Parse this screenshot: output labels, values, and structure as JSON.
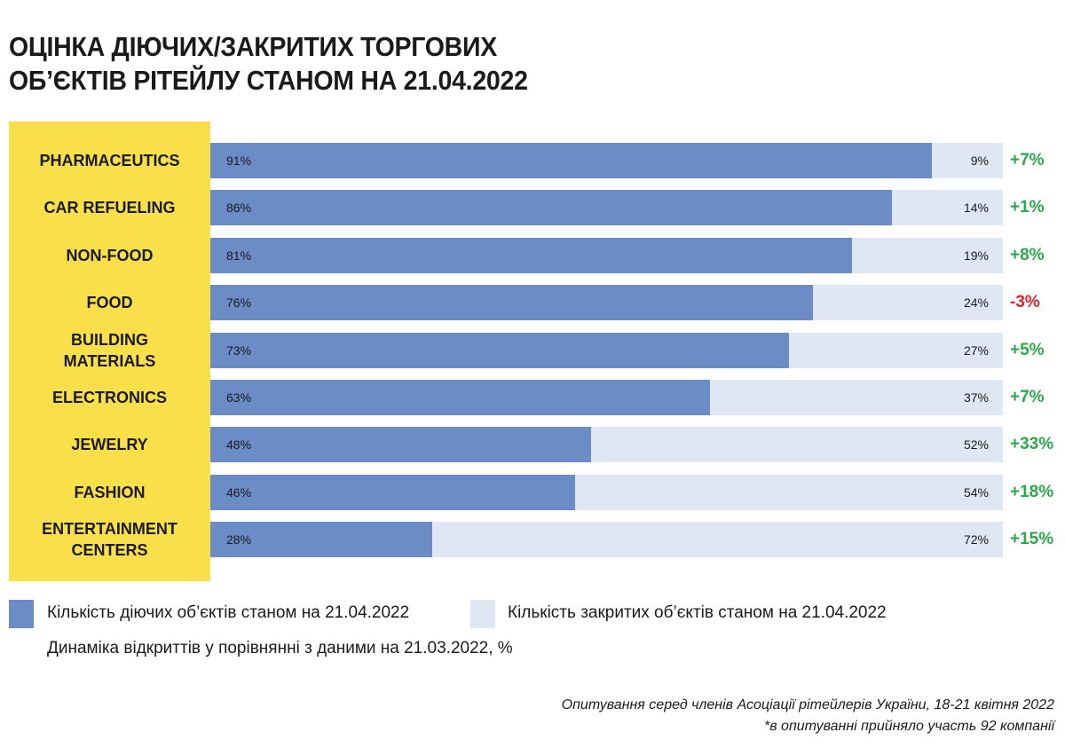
{
  "title_line1": "ОЦІНКА ДІЮЧИХ/ЗАКРИТИХ ТОРГОВИХ",
  "title_line2": "ОБ’ЄКТІВ РІТЕЙЛУ СТАНОМ НА 21.04.2022",
  "chart_data": {
    "type": "bar",
    "orientation": "horizontal",
    "stacked": true,
    "categories": [
      "PHARMACEUTICS",
      "CAR REFUELING",
      "NON-FOOD",
      "FOOD",
      "BUILDING MATERIALS",
      "ELECTRONICS",
      "JEWELRY",
      "FASHION",
      "ENTERTAINMENT CENTERS"
    ],
    "series": [
      {
        "name": "Кількість діючих об’єктів станом на 21.04.2022",
        "color": "#6B8CC7",
        "values": [
          91,
          86,
          81,
          76,
          73,
          63,
          48,
          46,
          28
        ],
        "labels": [
          "91%",
          "86%",
          "81%",
          "76%",
          "73%",
          "63%",
          "48%",
          "46%",
          "28%"
        ]
      },
      {
        "name": "Кількість закритих об’єктів станом на 21.04.2022",
        "color": "#DFE6F4",
        "values": [
          9,
          14,
          19,
          24,
          27,
          37,
          52,
          54,
          72
        ],
        "labels": [
          "9%",
          "14%",
          "19%",
          "24%",
          "27%",
          "37%",
          "52%",
          "54%",
          "72%"
        ]
      }
    ],
    "change_label": "Динаміка відкриттів у порівнянні з даними на 21.03.2022, %",
    "changes": [
      "+7%",
      "+1%",
      "+8%",
      "-3%",
      "+5%",
      "+7%",
      "+33%",
      "+18%",
      "+15%"
    ],
    "change_values": [
      7,
      1,
      8,
      -3,
      5,
      7,
      33,
      18,
      15
    ],
    "positive_color": "#2BA84A",
    "negative_color": "#E3202A",
    "xlim": [
      0,
      100
    ]
  },
  "footnote_line1": "Опитування серед членів Асоціації рітейлерів України, 18-21 квітня 2022",
  "footnote_line2": "*в опитуванні прийняло участь 92 компанії"
}
